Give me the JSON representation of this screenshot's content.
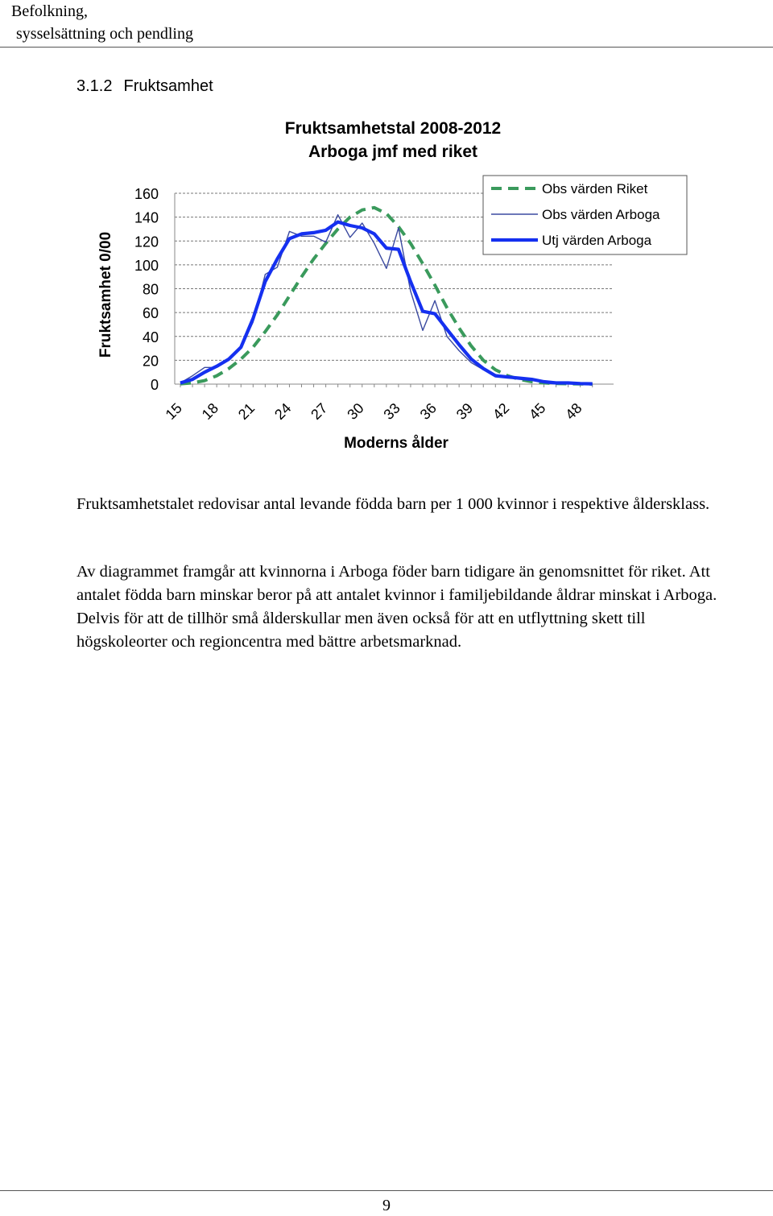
{
  "header": {
    "line1": "Befolkning,",
    "line2": "sysselsättning och pendling"
  },
  "section": {
    "number": "3.1.2",
    "title": "Fruktsamhet"
  },
  "chart_data": {
    "type": "line",
    "title_line1": "Fruktsamhetstal 2008-2012",
    "title_line2": "Arboga jmf med riket",
    "xlabel": "Moderns ålder",
    "ylabel": "Fruktsamhet 0/00",
    "xlim": [
      15,
      49
    ],
    "ylim": [
      0,
      160
    ],
    "yticks": [
      0,
      20,
      40,
      60,
      80,
      100,
      120,
      140,
      160
    ],
    "xticks": [
      15,
      18,
      21,
      24,
      27,
      30,
      33,
      36,
      39,
      42,
      45,
      48
    ],
    "grid": true,
    "legend_position": "top-right",
    "x": [
      15,
      16,
      17,
      18,
      19,
      20,
      21,
      22,
      23,
      24,
      25,
      26,
      27,
      28,
      29,
      30,
      31,
      32,
      33,
      34,
      35,
      36,
      37,
      38,
      39,
      40,
      41,
      42,
      43,
      44,
      45,
      46,
      47,
      48,
      49
    ],
    "series": [
      {
        "name": "Obs värden Riket",
        "color": "#3a9a5c",
        "style": "dashed",
        "values": [
          0.3,
          1,
          3,
          7,
          13,
          21,
          31,
          44,
          58,
          74,
          90,
          105,
          118,
          130,
          140,
          146,
          148,
          143,
          132,
          118,
          101,
          83,
          64,
          47,
          32,
          20,
          12,
          7,
          4,
          2,
          1,
          0.5,
          0.3,
          0.2,
          0.1
        ]
      },
      {
        "name": "Obs värden Arboga",
        "color": "#3b4aa0",
        "style": "thin",
        "values": [
          1,
          7,
          14,
          14,
          20,
          30,
          52,
          92,
          98,
          128,
          124,
          124,
          119,
          142,
          123,
          135,
          118,
          97,
          131,
          78,
          45,
          70,
          40,
          28,
          18,
          12,
          8,
          6,
          5,
          4,
          2,
          1,
          1,
          0.5,
          0.3
        ]
      },
      {
        "name": "Utj värden Arboga",
        "color": "#1530f0",
        "style": "thick",
        "values": [
          1,
          4,
          10,
          15,
          21,
          31,
          55,
          86,
          105,
          122,
          126,
          127,
          129,
          136,
          133,
          131,
          126,
          114,
          113,
          86,
          61,
          59,
          46,
          33,
          21,
          13,
          7,
          6,
          5,
          4,
          2,
          1,
          1,
          0.5,
          0.3
        ]
      }
    ]
  },
  "paragraphs": {
    "p1": "Fruktsamhetstalet redovisar antal levande födda barn per 1 000 kvinnor i respektive åldersklass.",
    "p2": "Av diagrammet framgår att kvinnorna i Arboga föder barn tidigare än genomsnittet för riket. Att antalet födda barn minskar beror på att antalet kvinnor i familjebildande åldrar minskat i Arboga. Delvis för att de tillhör små ålderskullar men även också för att en utflyttning skett till högskoleorter och regioncentra med bättre arbetsmarknad."
  },
  "footer": {
    "page_number": "9"
  }
}
